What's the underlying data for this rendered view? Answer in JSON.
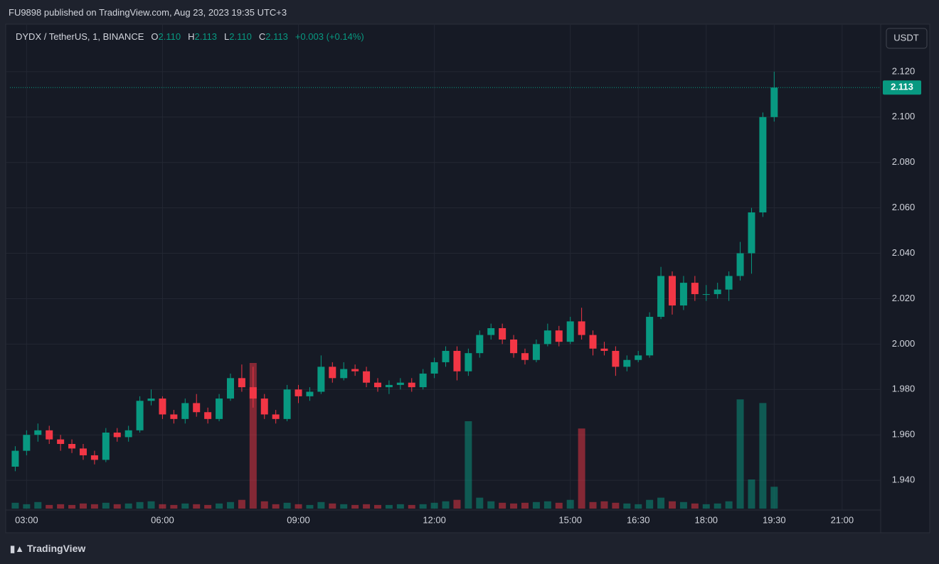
{
  "header": {
    "published": "FU9898 published on TradingView.com, Aug 23, 2023 19:35 UTC+3"
  },
  "chart_data": {
    "type": "candlestick",
    "legend": {
      "symbol": "DYDX / TetherUS, 1, BINANCE",
      "items": [
        {
          "label": "O",
          "value": "2.110"
        },
        {
          "label": "H",
          "value": "2.113"
        },
        {
          "label": "L",
          "value": "2.110"
        },
        {
          "label": "C",
          "value": "2.113"
        }
      ],
      "change": "+0.003 (+0.14%)"
    },
    "currency": "USDT",
    "up_color": "#089981",
    "down_color": "#f23645",
    "x": [
      "02:45",
      "03:00",
      "03:15",
      "03:30",
      "03:45",
      "04:00",
      "04:15",
      "04:30",
      "04:45",
      "05:00",
      "05:15",
      "05:30",
      "05:45",
      "06:00",
      "06:15",
      "06:30",
      "06:45",
      "07:00",
      "07:15",
      "07:30",
      "07:45",
      "08:00",
      "08:15",
      "08:30",
      "08:45",
      "09:00",
      "09:15",
      "09:30",
      "09:45",
      "10:00",
      "10:15",
      "10:30",
      "10:45",
      "11:00",
      "11:15",
      "11:30",
      "11:45",
      "12:00",
      "12:15",
      "12:30",
      "12:45",
      "13:00",
      "13:15",
      "13:30",
      "13:45",
      "14:00",
      "14:15",
      "14:30",
      "14:45",
      "15:00",
      "15:15",
      "15:30",
      "15:45",
      "16:00",
      "16:15",
      "16:30",
      "16:45",
      "17:00",
      "17:15",
      "17:30",
      "17:45",
      "18:00",
      "18:15",
      "18:30",
      "18:45",
      "19:00",
      "19:15",
      "19:30"
    ],
    "open": [
      1.946,
      1.953,
      1.96,
      1.962,
      1.958,
      1.956,
      1.954,
      1.951,
      1.949,
      1.961,
      1.959,
      1.962,
      1.975,
      1.976,
      1.969,
      1.967,
      1.974,
      1.97,
      1.967,
      1.976,
      1.985,
      1.981,
      1.976,
      1.969,
      1.967,
      1.98,
      1.977,
      1.979,
      1.99,
      1.985,
      1.989,
      1.988,
      1.983,
      1.981,
      1.982,
      1.983,
      1.981,
      1.987,
      1.992,
      1.997,
      1.988,
      1.996,
      2.004,
      2.007,
      2.002,
      1.996,
      1.993,
      2.0,
      2.006,
      2.001,
      2.01,
      2.004,
      1.998,
      1.997,
      1.99,
      1.993,
      1.995,
      2.012,
      2.03,
      2.017,
      2.027,
      2.022,
      2.022,
      2.024,
      2.03,
      2.04,
      2.058,
      2.1
    ],
    "high": [
      1.955,
      1.962,
      1.965,
      1.964,
      1.96,
      1.958,
      1.956,
      1.953,
      1.963,
      1.963,
      1.964,
      1.977,
      1.98,
      1.977,
      1.971,
      1.976,
      1.978,
      1.972,
      1.978,
      1.987,
      1.991,
      1.99,
      1.978,
      1.971,
      1.982,
      1.982,
      1.981,
      1.995,
      1.992,
      1.992,
      1.991,
      1.99,
      1.985,
      1.984,
      1.985,
      1.985,
      1.989,
      1.994,
      1.999,
      1.999,
      1.998,
      2.006,
      2.009,
      2.009,
      2.004,
      1.998,
      2.002,
      2.009,
      2.008,
      2.012,
      2.016,
      2.006,
      2.001,
      1.999,
      1.995,
      1.997,
      2.014,
      2.034,
      2.032,
      2.03,
      2.03,
      2.026,
      2.027,
      2.032,
      2.045,
      2.06,
      2.102,
      2.12
    ],
    "low": [
      1.944,
      1.951,
      1.957,
      1.956,
      1.953,
      1.952,
      1.949,
      1.947,
      1.948,
      1.957,
      1.957,
      1.961,
      1.973,
      1.967,
      1.965,
      1.965,
      1.968,
      1.965,
      1.966,
      1.975,
      1.979,
      1.972,
      1.967,
      1.965,
      1.966,
      1.974,
      1.975,
      1.978,
      1.983,
      1.984,
      1.986,
      1.981,
      1.979,
      1.978,
      1.98,
      1.979,
      1.98,
      1.985,
      1.99,
      1.984,
      1.986,
      1.994,
      2.002,
      2.0,
      1.994,
      1.991,
      1.992,
      1.999,
      1.999,
      2.0,
      2.002,
      1.995,
      1.995,
      1.986,
      1.988,
      1.992,
      1.994,
      2.011,
      2.013,
      2.015,
      2.019,
      2.019,
      2.02,
      2.019,
      2.028,
      2.031,
      2.056,
      2.098
    ],
    "close": [
      1.953,
      1.96,
      1.962,
      1.958,
      1.956,
      1.954,
      1.951,
      1.949,
      1.961,
      1.959,
      1.962,
      1.975,
      1.976,
      1.969,
      1.967,
      1.974,
      1.97,
      1.967,
      1.976,
      1.985,
      1.981,
      1.976,
      1.969,
      1.967,
      1.98,
      1.977,
      1.979,
      1.99,
      1.985,
      1.989,
      1.988,
      1.983,
      1.981,
      1.982,
      1.983,
      1.981,
      1.987,
      1.992,
      1.997,
      1.988,
      1.996,
      2.004,
      2.007,
      2.002,
      1.996,
      1.993,
      2.0,
      2.006,
      2.001,
      2.01,
      2.004,
      1.998,
      1.997,
      1.99,
      1.993,
      1.995,
      2.012,
      2.03,
      2.017,
      2.027,
      2.022,
      2.022,
      2.024,
      2.03,
      2.04,
      2.058,
      2.1,
      2.113
    ],
    "volume": [
      8,
      6,
      9,
      5,
      6,
      5,
      7,
      6,
      8,
      6,
      7,
      9,
      10,
      6,
      5,
      7,
      6,
      5,
      7,
      9,
      12,
      200,
      10,
      6,
      8,
      6,
      5,
      9,
      7,
      6,
      5,
      6,
      5,
      5,
      6,
      5,
      6,
      8,
      10,
      12,
      120,
      15,
      10,
      8,
      7,
      8,
      9,
      10,
      8,
      12,
      110,
      9,
      10,
      8,
      7,
      6,
      12,
      15,
      10,
      9,
      7,
      6,
      7,
      10,
      150,
      40,
      145,
      30
    ],
    "xlim": [
      "02:38",
      "21:51"
    ],
    "xticks": [
      "03:00",
      "06:00",
      "09:00",
      "12:00",
      "15:00",
      "16:30",
      "18:00",
      "19:30",
      "21:00"
    ],
    "ylim": [
      1.9269,
      2.1403
    ],
    "yticks": [
      {
        "value": 1.94,
        "label": "1.940"
      },
      {
        "value": 1.96,
        "label": "1.960"
      },
      {
        "value": 1.98,
        "label": "1.980"
      },
      {
        "value": 2,
        "label": "2.000"
      },
      {
        "value": 2.02,
        "label": "2.020"
      },
      {
        "value": 2.04,
        "label": "2.040"
      },
      {
        "value": 2.06,
        "label": "2.060"
      },
      {
        "value": 2.08,
        "label": "2.080"
      },
      {
        "value": 2.1,
        "label": "2.100"
      },
      {
        "value": 2.12,
        "label": "2.120"
      }
    ],
    "last_price": {
      "value": 2.113,
      "label": "2.113"
    },
    "grid": true
  },
  "footer": {
    "brand": "TradingView"
  }
}
